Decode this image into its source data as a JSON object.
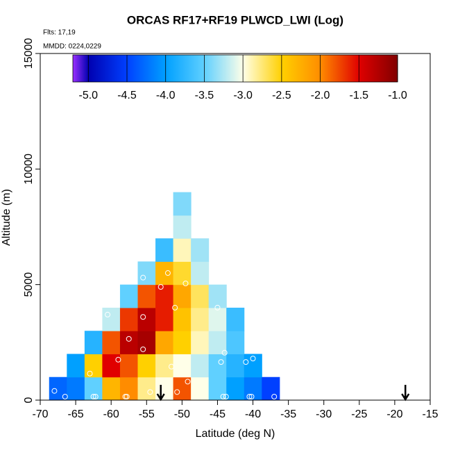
{
  "chart_data": {
    "type": "heatmap",
    "title": "ORCAS RF17+RF19 PLWCD_LWI (Log)",
    "flights_label": "Flts: 17,19",
    "date_label": "MMDD: 0224,0229",
    "xlabel": "Latitude (deg N)",
    "ylabel": "Altitude (m)",
    "xlim": [
      -70,
      -15
    ],
    "ylim": [
      0,
      15000
    ],
    "xticks": [
      -70,
      -65,
      -60,
      -55,
      -50,
      -45,
      -40,
      -35,
      -30,
      -25,
      -20,
      -15
    ],
    "yticks": [
      0,
      5000,
      10000,
      15000
    ],
    "x": [
      -67.5,
      -65,
      -62.5,
      -60,
      -57.5,
      -55,
      -52.5,
      -50,
      -47.5,
      -45,
      -42.5,
      -40,
      -37.5
    ],
    "y": [
      500,
      1500,
      2500,
      3500,
      4500,
      5500,
      6500,
      7500,
      8500
    ],
    "z": [
      [
        -4.3,
        -4.2,
        -3.5,
        -2.3,
        -2.0,
        -2.8,
        -3.0,
        -1.8,
        -3.0,
        -3.5,
        -4.0,
        -4.2,
        -4.5
      ],
      [
        null,
        -4.0,
        -2.5,
        -1.5,
        -1.8,
        -2.5,
        -2.8,
        -3.0,
        -3.2,
        -3.5,
        -3.8,
        -4.0,
        null
      ],
      [
        null,
        null,
        -3.8,
        -1.8,
        -1.3,
        -1.2,
        -2.2,
        -2.5,
        -2.9,
        -3.2,
        -3.6,
        null,
        null
      ],
      [
        null,
        null,
        null,
        -3.2,
        -1.7,
        -1.3,
        -1.6,
        -2.4,
        -2.8,
        -3.1,
        -3.7,
        null,
        null
      ],
      [
        null,
        null,
        null,
        null,
        -3.5,
        -1.8,
        -1.6,
        -2.2,
        -2.7,
        -3.3,
        null,
        null,
        null
      ],
      [
        null,
        null,
        null,
        null,
        null,
        -3.4,
        -2.3,
        -2.6,
        -3.2,
        null,
        null,
        null,
        null
      ],
      [
        null,
        null,
        null,
        null,
        null,
        null,
        -3.7,
        -2.9,
        -3.3,
        null,
        null,
        null,
        null
      ],
      [
        null,
        null,
        null,
        null,
        null,
        null,
        null,
        -3.2,
        null,
        null,
        null,
        null,
        null
      ],
      [
        null,
        null,
        null,
        null,
        null,
        null,
        null,
        -3.4,
        null,
        null,
        null,
        null,
        null
      ]
    ],
    "colorbar": {
      "lim": [
        -5.2,
        -1.0
      ],
      "stops": [
        -5.2,
        -5.0,
        -4.5,
        -4.0,
        -3.5,
        -3.0,
        -2.5,
        -2.0,
        -1.5,
        -1.0
      ],
      "colors": [
        "#9b30ff",
        "#0000b0",
        "#0040ff",
        "#00a0ff",
        "#60d0ff",
        "#ffffe8",
        "#ffd000",
        "#ff8c00",
        "#e00000",
        "#800000"
      ],
      "ticks": [
        {
          "value": -5.0,
          "label": "-5.0"
        },
        {
          "value": -4.5,
          "label": "-4.5"
        },
        {
          "value": -4.0,
          "label": "-4.0"
        },
        {
          "value": -3.5,
          "label": "-3.5"
        },
        {
          "value": -3.0,
          "label": "-3.0"
        },
        {
          "value": -2.5,
          "label": "-2.5"
        },
        {
          "value": -2.0,
          "label": "-2.0"
        },
        {
          "value": -1.5,
          "label": "-1.5"
        },
        {
          "value": -1.0,
          "label": "-1.0"
        }
      ]
    },
    "points": {
      "color": "#ffffff",
      "x": [
        -68,
        -66.5,
        -62.5,
        -62.2,
        -58,
        -57.8,
        -54.5,
        -50.7,
        -44.2,
        -43.8,
        -40.5,
        -40.2,
        -37,
        -63,
        -64.5,
        -59,
        -57.5,
        -60.5,
        -55.5,
        -55.5,
        -53,
        -51,
        -49.5,
        -55.5,
        -53.5,
        -51.5,
        -49.2,
        -45,
        -44,
        -44.5,
        -41,
        -40,
        -42.5,
        -52
      ],
      "y": [
        400,
        150,
        150,
        150,
        150,
        150,
        350,
        350,
        150,
        150,
        150,
        150,
        150,
        1150,
        2500,
        1750,
        2650,
        3700,
        2200,
        3600,
        4900,
        4000,
        5050,
        5300,
        7250,
        1450,
        800,
        4000,
        2050,
        1650,
        1650,
        1800,
        4400,
        5500
      ]
    },
    "arrows_x": [
      -53,
      -18.5
    ]
  }
}
